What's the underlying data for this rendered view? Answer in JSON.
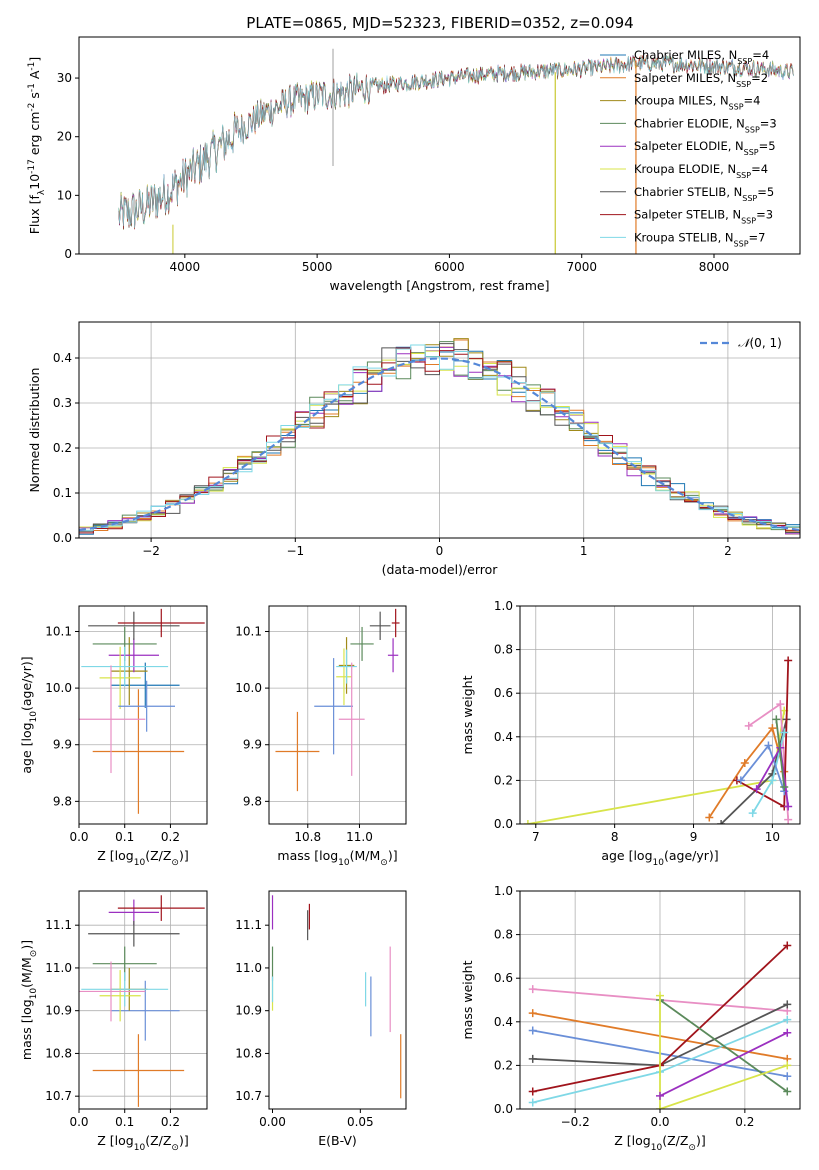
{
  "figure": {
    "title": "PLATE=0865, MJD=52323, FIBERID=0352, z=0.094"
  },
  "models": [
    {
      "name": "Chabrier MILES, N$_{SSP}$=4",
      "label": "Chabrier MILES, N",
      "sub": "SSP",
      "tail": "=4",
      "color": "#1f77b4"
    },
    {
      "name": "Salpeter MILES, N$_{SSP}$=2",
      "label": "Salpeter MILES, N",
      "sub": "SSP",
      "tail": "=2",
      "color": "#e07b28"
    },
    {
      "name": "Kroupa MILES, N$_{SSP}$=4",
      "label": "Kroupa MILES, N",
      "sub": "SSP",
      "tail": "=4",
      "color": "#a08a1a"
    },
    {
      "name": "Chabrier ELODIE, N$_{SSP}$=3",
      "label": "Chabrier ELODIE, N",
      "sub": "SSP",
      "tail": "=3",
      "color": "#5b8a5b"
    },
    {
      "name": "Salpeter ELODIE, N$_{SSP}$=5",
      "label": "Salpeter ELODIE, N",
      "sub": "SSP",
      "tail": "=5",
      "color": "#9b30c0"
    },
    {
      "name": "Kroupa ELODIE, N$_{SSP}$=4",
      "label": "Kroupa ELODIE, N",
      "sub": "SSP",
      "tail": "=4",
      "color": "#d8e44a"
    },
    {
      "name": "Chabrier STELIB, N$_{SSP}$=5",
      "label": "Chabrier STELIB, N",
      "sub": "SSP",
      "tail": "=5",
      "color": "#555555"
    },
    {
      "name": "Salpeter STELIB, N$_{SSP}$=3",
      "label": "Salpeter STELIB, N",
      "sub": "SSP",
      "tail": "=3",
      "color": "#a0141c"
    },
    {
      "name": "Kroupa STELIB, N$_{SSP}$=7",
      "label": "Kroupa STELIB, N",
      "sub": "SSP",
      "tail": "=7",
      "color": "#7fd8e6"
    }
  ],
  "chart_data": [
    {
      "id": "spectrum",
      "type": "line",
      "title": "PLATE=0865, MJD=52323, FIBERID=0352, z=0.094",
      "xlabel": "wavelength [Angstrom, rest frame]",
      "ylabel": "Flux [f$_\\lambda$10$^{-17}$ erg cm$^{-2}$ s$^{-1}$ A$^{-1}$]",
      "xlim": [
        3200,
        8650
      ],
      "ylim": [
        0,
        37
      ],
      "xticks": [
        4000,
        5000,
        6000,
        7000,
        8000
      ],
      "yticks": [
        0,
        10,
        20,
        30
      ],
      "grid": false,
      "legend": "upper right",
      "continuum": [
        [
          3500,
          6.5
        ],
        [
          3700,
          8
        ],
        [
          3900,
          11
        ],
        [
          4000,
          13
        ],
        [
          4200,
          17
        ],
        [
          4400,
          21
        ],
        [
          4600,
          24
        ],
        [
          4800,
          26
        ],
        [
          5000,
          27
        ],
        [
          5200,
          27.5
        ],
        [
          5400,
          28.5
        ],
        [
          5600,
          29
        ],
        [
          5800,
          29.5
        ],
        [
          6000,
          30
        ],
        [
          6200,
          30.5
        ],
        [
          6400,
          30.8
        ],
        [
          6600,
          31
        ],
        [
          6800,
          31.3
        ],
        [
          7000,
          31.5
        ],
        [
          7200,
          32
        ],
        [
          7400,
          32.5
        ],
        [
          7600,
          32.5
        ],
        [
          7800,
          32.3
        ],
        [
          8000,
          32
        ],
        [
          8200,
          31.8
        ],
        [
          8400,
          31.5
        ],
        [
          8600,
          31
        ]
      ]
    },
    {
      "id": "residual_hist",
      "type": "histogram",
      "xlabel": "(data-model)/error",
      "ylabel": "Normed distribution",
      "xlim": [
        -2.5,
        2.5
      ],
      "ylim": [
        0,
        0.48
      ],
      "xticks": [
        -2,
        -1,
        0,
        1,
        2
      ],
      "yticks": [
        0.0,
        0.1,
        0.2,
        0.3,
        0.4
      ],
      "grid": true,
      "legend": "upper right",
      "reference_curve": {
        "name": "$\\mathcal{N}(0,1)$",
        "mean": 0,
        "sigma": 1,
        "color": "#5588d8"
      }
    },
    {
      "id": "age_vs_Z",
      "type": "errorbar",
      "xlabel": "Z [log$_{10}$(Z/Z$_\\odot$)]",
      "ylabel": "age  [log$_{10}$(age/yr)]",
      "xlim": [
        0,
        0.28
      ],
      "ylim": [
        9.76,
        10.145
      ],
      "xticks": [
        0.0,
        0.1,
        0.2
      ],
      "yticks": [
        9.8,
        9.9,
        10.0,
        10.1
      ],
      "grid": true,
      "points": [
        {
          "x": 0.145,
          "xerr": 0.075,
          "y": 10.005,
          "yerr": 0.04,
          "color": "#1f77b4"
        },
        {
          "x": 0.13,
          "xerr": 0.1,
          "y": 9.888,
          "yerr": 0.11,
          "color": "#e07b28"
        },
        {
          "x": 0.11,
          "xerr": 0.04,
          "y": 10.03,
          "yerr": 0.06,
          "color": "#a08a1a"
        },
        {
          "x": 0.1,
          "xerr": 0.07,
          "y": 10.078,
          "yerr": 0.03,
          "color": "#5b8a5b"
        },
        {
          "x": 0.12,
          "xerr": 0.055,
          "y": 10.058,
          "yerr": 0.03,
          "color": "#9b30c0"
        },
        {
          "x": 0.09,
          "xerr": 0.045,
          "y": 10.018,
          "yerr": 0.055,
          "color": "#d8e44a"
        },
        {
          "x": 0.12,
          "xerr": 0.1,
          "y": 10.11,
          "yerr": 0.025,
          "color": "#555555"
        },
        {
          "x": 0.18,
          "xerr": 0.095,
          "y": 10.115,
          "yerr": 0.025,
          "color": "#a0141c"
        },
        {
          "x": 0.1,
          "xerr": 0.095,
          "y": 10.038,
          "yerr": 0.035,
          "color": "#7fd8e6"
        },
        {
          "x": 0.148,
          "xerr": 0.062,
          "y": 9.968,
          "yerr": 0.045,
          "color": "#6a8fd8"
        },
        {
          "x": 0.07,
          "xerr": 0.075,
          "y": 9.945,
          "yerr": 0.095,
          "color": "#e88fc4"
        }
      ]
    },
    {
      "id": "age_vs_mass",
      "type": "errorbar",
      "xlabel": "mass [log$_{10}$(M/M$_\\odot$)]",
      "ylabel": "",
      "xlim": [
        10.65,
        11.18
      ],
      "ylim": [
        9.76,
        10.145
      ],
      "xticks": [
        10.8,
        11.0
      ],
      "yticks": [
        9.8,
        9.9,
        10.0,
        10.1
      ],
      "grid": true,
      "points": [
        {
          "x": 10.9,
          "xerr": 0.075,
          "y": 9.968,
          "yerr": 0.085,
          "color": "#6a8fd8"
        },
        {
          "x": 10.76,
          "xerr": 0.085,
          "y": 9.888,
          "yerr": 0.07,
          "color": "#e07b28"
        },
        {
          "x": 10.95,
          "xerr": 0.03,
          "y": 10.04,
          "yerr": 0.05,
          "color": "#a08a1a"
        },
        {
          "x": 11.01,
          "xerr": 0.045,
          "y": 10.078,
          "yerr": 0.03,
          "color": "#5b8a5b"
        },
        {
          "x": 11.13,
          "xerr": 0.02,
          "y": 10.058,
          "yerr": 0.03,
          "color": "#9b30c0"
        },
        {
          "x": 10.94,
          "xerr": 0.03,
          "y": 10.02,
          "yerr": 0.05,
          "color": "#d8e44a"
        },
        {
          "x": 11.08,
          "xerr": 0.04,
          "y": 10.11,
          "yerr": 0.025,
          "color": "#555555"
        },
        {
          "x": 11.14,
          "xerr": 0.015,
          "y": 10.115,
          "yerr": 0.025,
          "color": "#a0141c"
        },
        {
          "x": 10.95,
          "xerr": 0.04,
          "y": 10.038,
          "yerr": 0.03,
          "color": "#7fd8e6"
        },
        {
          "x": 10.97,
          "xerr": 0.05,
          "y": 9.945,
          "yerr": 0.1,
          "color": "#e88fc4"
        }
      ]
    },
    {
      "id": "weight_vs_age",
      "type": "line",
      "xlabel": "age  [log$_{10}$(age/yr)]",
      "ylabel": "mass weight",
      "xlim": [
        6.8,
        10.35
      ],
      "ylim": [
        0,
        1.0
      ],
      "xticks": [
        7,
        8,
        9,
        10
      ],
      "yticks": [
        0.0,
        0.2,
        0.4,
        0.6,
        0.8,
        1.0
      ],
      "grid": true,
      "series": [
        {
          "color": "#d8e44a",
          "points": [
            [
              6.9,
              0.0
            ],
            [
              10.0,
              0.2
            ],
            [
              10.15,
              0.52
            ]
          ]
        },
        {
          "color": "#e07b28",
          "points": [
            [
              9.2,
              0.03
            ],
            [
              9.65,
              0.28
            ],
            [
              10.0,
              0.44
            ],
            [
              10.15,
              0.24
            ]
          ]
        },
        {
          "color": "#e88fc4",
          "points": [
            [
              9.7,
              0.45
            ],
            [
              10.1,
              0.55
            ],
            [
              10.2,
              0.02
            ]
          ]
        },
        {
          "color": "#555555",
          "points": [
            [
              9.35,
              0.0
            ],
            [
              10.0,
              0.23
            ],
            [
              10.18,
              0.48
            ]
          ]
        },
        {
          "color": "#a0141c",
          "points": [
            [
              9.55,
              0.2
            ],
            [
              10.15,
              0.08
            ],
            [
              10.2,
              0.75
            ]
          ]
        },
        {
          "color": "#7fd8e6",
          "points": [
            [
              9.75,
              0.05
            ],
            [
              10.0,
              0.2
            ],
            [
              10.15,
              0.42
            ]
          ]
        },
        {
          "color": "#6a8fd8",
          "points": [
            [
              9.6,
              0.2
            ],
            [
              9.95,
              0.36
            ],
            [
              10.15,
              0.15
            ]
          ]
        },
        {
          "color": "#9b30c0",
          "points": [
            [
              9.8,
              0.16
            ],
            [
              10.1,
              0.35
            ],
            [
              10.2,
              0.08
            ]
          ]
        },
        {
          "color": "#5b8a5b",
          "points": [
            [
              10.05,
              0.48
            ],
            [
              10.15,
              0.17
            ]
          ]
        }
      ]
    },
    {
      "id": "mass_vs_Z",
      "type": "errorbar",
      "xlabel": "Z [log$_{10}$(Z/Z$_\\odot$)]",
      "ylabel": "mass [log$_{10}$(M/M$_\\odot$)]",
      "xlim": [
        0,
        0.28
      ],
      "ylim": [
        10.67,
        11.18
      ],
      "xticks": [
        0.0,
        0.1,
        0.2
      ],
      "yticks": [
        10.7,
        10.8,
        10.9,
        11.0,
        11.1
      ],
      "grid": true,
      "points": [
        {
          "x": 0.145,
          "xerr": 0.075,
          "y": 10.9,
          "yerr": 0.07,
          "color": "#6a8fd8"
        },
        {
          "x": 0.13,
          "xerr": 0.1,
          "y": 10.76,
          "yerr": 0.085,
          "color": "#e07b28"
        },
        {
          "x": 0.11,
          "xerr": 0.04,
          "y": 10.95,
          "yerr": 0.05,
          "color": "#a08a1a"
        },
        {
          "x": 0.1,
          "xerr": 0.07,
          "y": 11.01,
          "yerr": 0.04,
          "color": "#5b8a5b"
        },
        {
          "x": 0.12,
          "xerr": 0.055,
          "y": 11.13,
          "yerr": 0.03,
          "color": "#9b30c0"
        },
        {
          "x": 0.09,
          "xerr": 0.045,
          "y": 10.935,
          "yerr": 0.06,
          "color": "#d8e44a"
        },
        {
          "x": 0.12,
          "xerr": 0.1,
          "y": 11.08,
          "yerr": 0.03,
          "color": "#555555"
        },
        {
          "x": 0.18,
          "xerr": 0.095,
          "y": 11.14,
          "yerr": 0.03,
          "color": "#a0141c"
        },
        {
          "x": 0.1,
          "xerr": 0.095,
          "y": 10.95,
          "yerr": 0.04,
          "color": "#7fd8e6"
        },
        {
          "x": 0.07,
          "xerr": 0.075,
          "y": 10.945,
          "yerr": 0.07,
          "color": "#e88fc4"
        }
      ]
    },
    {
      "id": "mass_vs_ebv",
      "type": "errorbar",
      "xlabel": "E(B-V)",
      "ylabel": "",
      "xlim": [
        -0.002,
        0.076
      ],
      "ylim": [
        10.67,
        11.18
      ],
      "xticks": [
        0.0,
        0.05
      ],
      "yticks": [
        10.7,
        10.8,
        10.9,
        11.0,
        11.1
      ],
      "grid": false,
      "points": [
        {
          "x": 0.0,
          "xerr": 0.0,
          "y": 11.13,
          "yerr": 0.04,
          "color": "#9b30c0"
        },
        {
          "x": 0.0,
          "xerr": 0.0,
          "y": 11.01,
          "yerr": 0.04,
          "color": "#5b8a5b"
        },
        {
          "x": 0.0,
          "xerr": 0.0,
          "y": 10.935,
          "yerr": 0.035,
          "color": "#d8e44a"
        },
        {
          "x": 0.0,
          "xerr": 0.0,
          "y": 10.95,
          "yerr": 0.03,
          "color": "#7fd8e6"
        },
        {
          "x": 0.021,
          "xerr": 0.0,
          "y": 11.12,
          "yerr": 0.03,
          "color": "#a0141c"
        },
        {
          "x": 0.02,
          "xerr": 0.0,
          "y": 11.1,
          "yerr": 0.035,
          "color": "#555555"
        },
        {
          "x": 0.056,
          "xerr": 0.0,
          "y": 10.91,
          "yerr": 0.07,
          "color": "#6a8fd8"
        },
        {
          "x": 0.067,
          "xerr": 0.0,
          "y": 10.95,
          "yerr": 0.1,
          "color": "#e88fc4"
        },
        {
          "x": 0.073,
          "xerr": 0.0,
          "y": 10.77,
          "yerr": 0.075,
          "color": "#e07b28"
        },
        {
          "x": 0.053,
          "xerr": 0.0,
          "y": 10.95,
          "yerr": 0.04,
          "color": "#7fd8e6"
        }
      ]
    },
    {
      "id": "weight_vs_Z",
      "type": "line",
      "xlabel": "Z [log$_{10}$(Z/Z$_\\odot$)]",
      "ylabel": "mass weight",
      "xlim": [
        -0.33,
        0.33
      ],
      "ylim": [
        0,
        1.0
      ],
      "xticks": [
        -0.2,
        0.0,
        0.2
      ],
      "yticks": [
        0.0,
        0.2,
        0.4,
        0.6,
        0.8,
        1.0
      ],
      "grid": true,
      "series": [
        {
          "color": "#e88fc4",
          "points": [
            [
              -0.3,
              0.55
            ],
            [
              0.3,
              0.45
            ]
          ]
        },
        {
          "color": "#e07b28",
          "points": [
            [
              -0.3,
              0.44
            ],
            [
              0.3,
              0.23
            ]
          ]
        },
        {
          "color": "#6a8fd8",
          "points": [
            [
              -0.3,
              0.36
            ],
            [
              0.3,
              0.15
            ]
          ]
        },
        {
          "color": "#555555",
          "points": [
            [
              -0.3,
              0.23
            ],
            [
              0.0,
              0.2
            ],
            [
              0.3,
              0.48
            ]
          ]
        },
        {
          "color": "#a0141c",
          "points": [
            [
              -0.3,
              0.08
            ],
            [
              0.0,
              0.2
            ],
            [
              0.3,
              0.75
            ]
          ]
        },
        {
          "color": "#7fd8e6",
          "points": [
            [
              -0.3,
              0.03
            ],
            [
              0.0,
              0.17
            ],
            [
              0.3,
              0.41
            ]
          ]
        },
        {
          "color": "#5b8a5b",
          "points": [
            [
              0.0,
              0.5
            ],
            [
              0.3,
              0.08
            ]
          ]
        },
        {
          "color": "#d8e44a",
          "points": [
            [
              0.0,
              0.52
            ],
            [
              0.0,
              0.0
            ],
            [
              0.3,
              0.2
            ]
          ]
        },
        {
          "color": "#9b30c0",
          "points": [
            [
              0.0,
              0.06
            ],
            [
              0.3,
              0.35
            ]
          ]
        }
      ]
    }
  ]
}
